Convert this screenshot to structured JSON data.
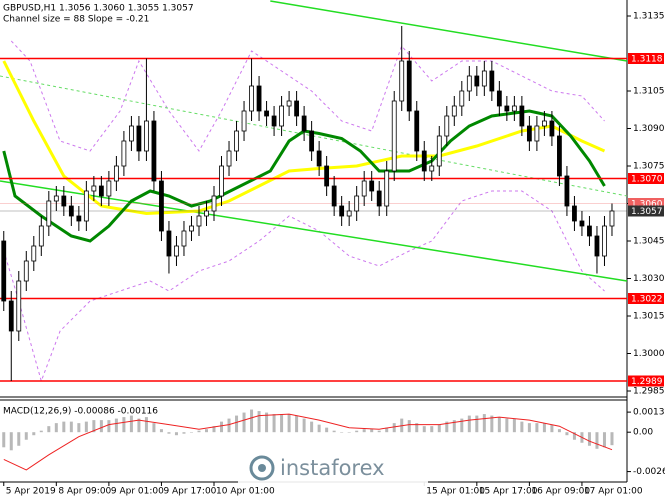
{
  "chart_data": [
    {
      "type": "candlestick",
      "title": "GBPUSD,H1  1.3056 1.3060 1.3055 1.3057",
      "subtitle": "Channel size = 88  Slope = -0.21",
      "categories": [
        "5 Apr 2019",
        null,
        null,
        null,
        null,
        null,
        null,
        "8 Apr 09:00",
        null,
        null,
        null,
        null,
        null,
        null,
        "9 Apr 01:00",
        null,
        null,
        null,
        null,
        null,
        null,
        "9 Apr 17:00",
        null,
        null,
        null,
        null,
        null,
        null,
        "10 Apr 01:00",
        null,
        null,
        null,
        null,
        null,
        null,
        null,
        null,
        null,
        null,
        null,
        null,
        null,
        null,
        null,
        null,
        null,
        null,
        null,
        null,
        null,
        null,
        null,
        null,
        null,
        null,
        null,
        "15 Apr 01:00",
        null,
        null,
        null,
        null,
        null,
        null,
        "15 Apr 17:00",
        null,
        null,
        null,
        null,
        null,
        null,
        "16 Apr 09:00",
        null,
        null,
        null,
        null,
        null,
        null,
        "17 Apr 01:00",
        null,
        null,
        null,
        null
      ],
      "open": [
        1.3045,
        1.3021,
        1.3009,
        1.3029,
        1.3037,
        1.3043,
        1.3051,
        1.3061,
        1.3063,
        1.3059,
        1.3055,
        1.3053,
        1.3065,
        1.3067,
        1.3063,
        1.3069,
        1.3075,
        1.3085,
        1.3091,
        1.3081,
        1.3093,
        1.3069,
        1.3049,
        1.3039,
        1.3043,
        1.3049,
        1.3051,
        1.3055,
        1.3057,
        1.3063,
        1.3075,
        1.3081,
        1.3089,
        1.3097,
        1.3107,
        1.3097,
        1.3095,
        1.3091,
        1.3099,
        1.3101,
        1.3095,
        1.3089,
        1.3081,
        1.3075,
        1.3067,
        1.3059,
        1.3055,
        1.3057,
        1.3063,
        1.3069,
        1.3065,
        1.3059,
        1.3073,
        1.3101,
        1.3117,
        1.3097,
        1.3081,
        1.3073,
        1.3075,
        1.3087,
        1.3095,
        1.3099,
        1.3105,
        1.3111,
        1.3107,
        1.3113,
        1.3105,
        1.3099,
        1.3097,
        1.3099,
        1.3091,
        1.3085,
        1.3091,
        1.3093,
        1.3087,
        1.3071,
        1.3059,
        1.3053,
        1.3051,
        1.3047,
        1.3039,
        1.3051
      ],
      "high": [
        1.3049,
        1.3025,
        1.3033,
        1.3041,
        1.3047,
        1.3055,
        1.3065,
        1.3067,
        1.3067,
        1.3063,
        1.3059,
        1.3069,
        1.3071,
        1.3071,
        1.3073,
        1.3079,
        1.3089,
        1.3095,
        1.3095,
        1.3118,
        1.3097,
        1.3073,
        1.3053,
        1.3047,
        1.3053,
        1.3055,
        1.3059,
        1.3061,
        1.3067,
        1.3079,
        1.3085,
        1.3093,
        1.3101,
        1.3118,
        1.3111,
        1.3101,
        1.3099,
        1.3103,
        1.3105,
        1.3105,
        1.3099,
        1.3093,
        1.3085,
        1.3079,
        1.3071,
        1.3063,
        1.3061,
        1.3067,
        1.3073,
        1.3073,
        1.3069,
        1.3077,
        1.3105,
        1.3131,
        1.3121,
        1.3101,
        1.3085,
        1.3079,
        1.3091,
        1.3099,
        1.3103,
        1.3109,
        1.3115,
        1.3115,
        1.3117,
        1.3117,
        1.3109,
        1.3103,
        1.3103,
        1.3103,
        1.3095,
        1.3095,
        1.3097,
        1.3097,
        1.3091,
        1.3075,
        1.3063,
        1.3057,
        1.3055,
        1.3051,
        1.3055,
        1.306
      ],
      "low": [
        1.3017,
        1.2989,
        1.3005,
        1.3025,
        1.3033,
        1.3039,
        1.3047,
        1.3057,
        1.3055,
        1.3051,
        1.3049,
        1.3049,
        1.3061,
        1.3059,
        1.3059,
        1.3065,
        1.3071,
        1.3081,
        1.3077,
        1.3077,
        1.3065,
        1.3045,
        1.3032,
        1.3035,
        1.3039,
        1.3045,
        1.3047,
        1.3051,
        1.3053,
        1.3059,
        1.3071,
        1.3077,
        1.3085,
        1.3093,
        1.3093,
        1.3091,
        1.3087,
        1.3087,
        1.3095,
        1.3091,
        1.3085,
        1.3077,
        1.3071,
        1.3063,
        1.3055,
        1.3051,
        1.3051,
        1.3053,
        1.3059,
        1.3061,
        1.3055,
        1.3055,
        1.3069,
        1.3097,
        1.3093,
        1.3077,
        1.3069,
        1.3069,
        1.3071,
        1.3083,
        1.3091,
        1.3095,
        1.3101,
        1.3103,
        1.3103,
        1.3101,
        1.3095,
        1.3093,
        1.3093,
        1.3087,
        1.3081,
        1.3081,
        1.3087,
        1.3083,
        1.3067,
        1.3055,
        1.3049,
        1.3047,
        1.3043,
        1.3032,
        1.3035,
        1.3047
      ],
      "close": [
        1.3021,
        1.3009,
        1.3029,
        1.3037,
        1.3043,
        1.3051,
        1.3061,
        1.3063,
        1.3059,
        1.3055,
        1.3053,
        1.3065,
        1.3067,
        1.3063,
        1.3069,
        1.3075,
        1.3085,
        1.3091,
        1.3081,
        1.3093,
        1.3069,
        1.3049,
        1.3039,
        1.3043,
        1.3049,
        1.3051,
        1.3055,
        1.3057,
        1.3063,
        1.3075,
        1.3081,
        1.3089,
        1.3097,
        1.3107,
        1.3097,
        1.3095,
        1.3091,
        1.3099,
        1.3101,
        1.3095,
        1.3089,
        1.3081,
        1.3075,
        1.3067,
        1.3059,
        1.3055,
        1.3057,
        1.3063,
        1.3069,
        1.3065,
        1.3059,
        1.3073,
        1.3101,
        1.3117,
        1.3097,
        1.3081,
        1.3073,
        1.3075,
        1.3087,
        1.3095,
        1.3099,
        1.3105,
        1.3111,
        1.3107,
        1.3113,
        1.3105,
        1.3099,
        1.3097,
        1.3099,
        1.3091,
        1.3085,
        1.3091,
        1.3093,
        1.3087,
        1.3071,
        1.3059,
        1.3053,
        1.3051,
        1.3047,
        1.3039,
        1.3051,
        1.3057
      ],
      "candle_colors": {
        "up": "#ffffff",
        "down": "#000000",
        "outline": "#000000"
      },
      "xlim": [
        -0.5,
        83
      ],
      "ylim": [
        1.29834,
        1.31414
      ],
      "yticks": [
        1.3135,
        1.3105,
        {
          "value": 1.309,
          "label": "1.3090"
        },
        1.3075,
        {
          "value": 1.306,
          "label": "1.3060"
        },
        1.3045,
        {
          "value": 1.303,
          "label": "1.3030"
        },
        1.3015,
        {
          "value": 1.3,
          "label": "1.3000"
        },
        1.2985
      ],
      "overlays": [
        {
          "color": "#cc77ee",
          "width": 1,
          "dash": true,
          "x": [
            1,
            3.5,
            7.5,
            11.5,
            15.5,
            18,
            22,
            26,
            29,
            33,
            37,
            41,
            45,
            49,
            53,
            57,
            61,
            65,
            69,
            73,
            77,
            80
          ],
          "values": [
            1.3125,
            1.3117,
            1.3085,
            1.3081,
            1.3097,
            1.3117,
            1.3097,
            1.3081,
            1.3097,
            1.3121,
            1.3113,
            1.3105,
            1.3093,
            1.3089,
            1.3123,
            1.3109,
            1.3117,
            1.3117,
            1.3111,
            1.3105,
            1.3103,
            1.3093
          ]
        },
        {
          "color": "#cc77ee",
          "width": 1,
          "dash": true,
          "x": [
            0,
            2,
            5,
            7.5,
            11.5,
            15.5,
            19.5,
            22,
            26,
            30,
            34,
            38,
            42,
            46,
            50,
            54,
            57,
            61,
            65,
            69,
            73,
            77,
            80
          ],
          "values": [
            1.3041,
            1.3021,
            1.2989,
            1.3009,
            1.3021,
            1.3025,
            1.3029,
            1.3025,
            1.3033,
            1.3037,
            1.3045,
            1.3055,
            1.3049,
            1.3039,
            1.3035,
            1.3041,
            1.3045,
            1.3061,
            1.3065,
            1.3065,
            1.3057,
            1.3033,
            1.3025
          ]
        },
        {
          "color": "#66dd66",
          "width": 1,
          "dash": true,
          "x": [
            -0.5,
            83
          ],
          "values": [
            1.3111,
            1.3063
          ]
        },
        {
          "color": "#22dd22",
          "width": 1.5,
          "dash": false,
          "x": [
            35.5,
            83
          ],
          "values": [
            1.3141,
            1.3117
          ]
        },
        {
          "color": "#22dd22",
          "width": 1.5,
          "dash": false,
          "x": [
            -0.5,
            83
          ],
          "values": [
            1.3069,
            1.3029
          ]
        },
        {
          "color": "#ffff00",
          "width": 3,
          "dash": false,
          "x": [
            0,
            4,
            8,
            13,
            19,
            26,
            30,
            34,
            38,
            42,
            47,
            53,
            58,
            63,
            69,
            73,
            77,
            80
          ],
          "values": [
            1.3117,
            1.3093,
            1.3071,
            1.3059,
            1.3056,
            1.3057,
            1.3061,
            1.3067,
            1.3073,
            1.3074,
            1.3075,
            1.3079,
            1.3079,
            1.3083,
            1.3089,
            1.3091,
            1.3085,
            1.3081
          ]
        },
        {
          "color": "#008800",
          "width": 3,
          "dash": false,
          "x": [
            0,
            1.5,
            5,
            9,
            11.5,
            14,
            17,
            19.5,
            22,
            25,
            27.5,
            31.5,
            35.5,
            38,
            40,
            42,
            45,
            47.5,
            50,
            52,
            54,
            57,
            59.5,
            62,
            65,
            67.5,
            70,
            73,
            75.5,
            78,
            80
          ],
          "values": [
            1.3081,
            1.3063,
            1.3055,
            1.3047,
            1.3045,
            1.3051,
            1.3061,
            1.3065,
            1.3063,
            1.3059,
            1.3061,
            1.3067,
            1.3073,
            1.3085,
            1.3089,
            1.3088,
            1.3086,
            1.3081,
            1.3073,
            1.3073,
            1.3073,
            1.3077,
            1.3085,
            1.3091,
            1.3095,
            1.3096,
            1.3097,
            1.3095,
            1.3087,
            1.3077,
            1.3067
          ]
        }
      ],
      "levels": [
        1.3118,
        {
          "value": 1.307,
          "label": "1.3070"
        },
        1.3022,
        1.2989
      ],
      "level_color": "#ff0000",
      "price_lines": [
        {
          "value": 1.306,
          "label": "1.3060",
          "color": "#f06060"
        },
        {
          "value": 1.3057,
          "label": "1.3057",
          "color": "#303030"
        }
      ]
    },
    {
      "type": "macd",
      "title": "MACD(12,26,9) -0.00086 -0.00116",
      "values": [
        -0.001,
        -0.0012,
        -0.0009,
        -0.0005,
        -0.0002,
        0.0001,
        0.0004,
        0.0006,
        0.0007,
        0.0007,
        0.0006,
        0.0007,
        0.0008,
        0.0008,
        0.0008,
        0.0009,
        0.001,
        0.0011,
        0.0009,
        0.001,
        0.0006,
        0.0002,
        -0.0001,
        -0.0002,
        -0.0001,
        0,
        0.0001,
        0.0002,
        0.0004,
        0.0007,
        0.0009,
        0.0011,
        0.0013,
        0.0015,
        0.0014,
        0.0013,
        0.0012,
        0.0012,
        0.0012,
        0.0011,
        0.0009,
        0.0007,
        0.0005,
        0.0003,
        0.0001,
        0,
        0,
        0.0001,
        0.0002,
        0.0002,
        0.0001,
        0.0003,
        0.0006,
        0.0009,
        0.0008,
        0.0006,
        0.0004,
        0.0004,
        0.0005,
        0.0007,
        0.0008,
        0.0009,
        0.0011,
        0.0011,
        0.0012,
        0.0011,
        0.001,
        0.0009,
        0.0009,
        0.0007,
        0.0006,
        0.0006,
        0.0006,
        0.0005,
        0.0002,
        -0.0002,
        -0.0005,
        -0.0007,
        -0.0009,
        -0.0011,
        -0.001,
        -0.00086
      ],
      "color": "#b8b8b8",
      "signal": {
        "color": "#ee2222",
        "x": [
          0,
          3,
          6,
          10,
          14,
          18,
          22,
          26,
          30,
          34,
          38,
          42,
          46,
          50,
          54,
          58,
          62,
          66,
          70,
          74,
          78,
          81
        ],
        "values": [
          -0.0018,
          -0.0025,
          -0.0015,
          -0.0003,
          0.0005,
          0.0008,
          0.0005,
          0.0002,
          0.0005,
          0.0011,
          0.0012,
          0.0008,
          0.0003,
          0.0002,
          0.0005,
          0.0005,
          0.0008,
          0.001,
          0.0008,
          0.0004,
          -0.0006,
          -0.00116
        ]
      },
      "xlim": [
        -0.5,
        83
      ],
      "ylim": [
        -0.0033,
        0.002
      ],
      "yticks": [
        0.00133,
        {
          "value": 0,
          "label": "0.00"
        },
        -0.00261
      ]
    }
  ],
  "watermark": "instaforex"
}
